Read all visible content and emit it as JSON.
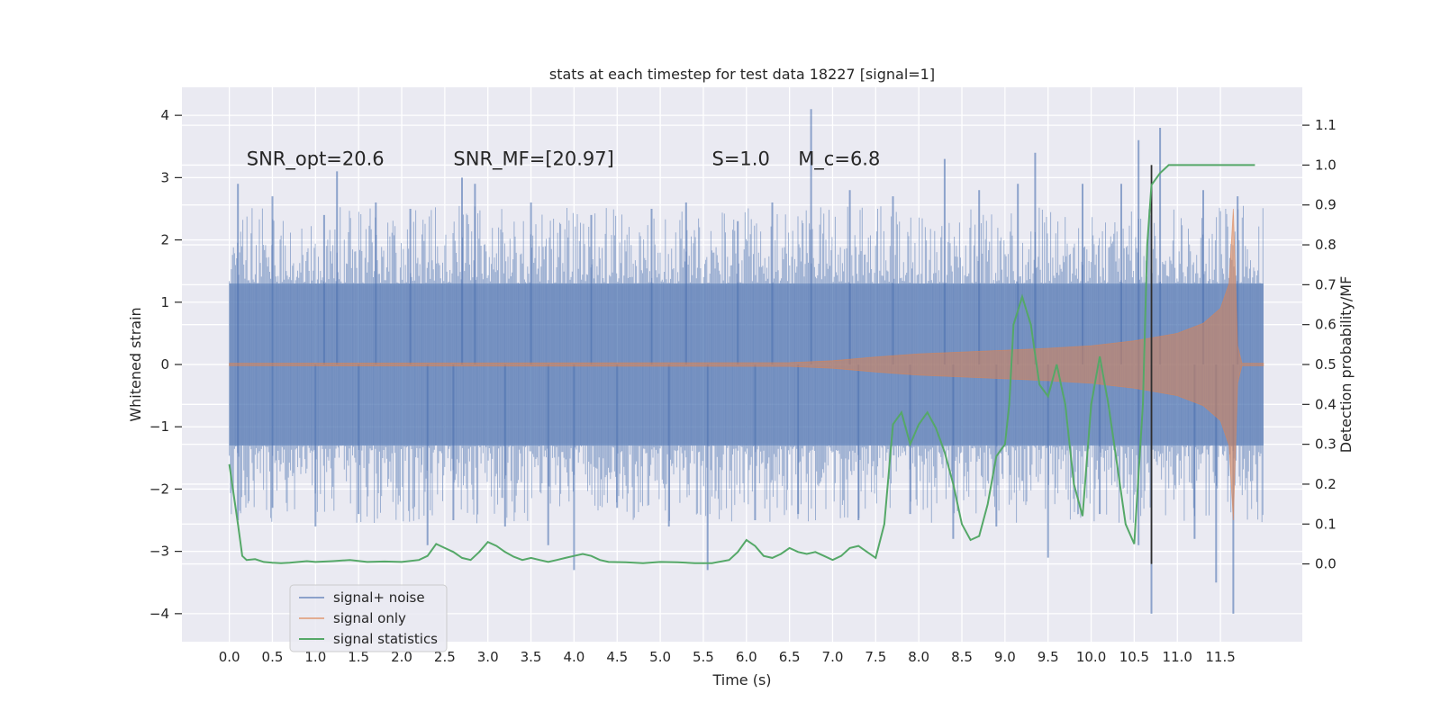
{
  "chart_data": {
    "type": "line",
    "title": "stats at each timestep for test data 18227 [signal=1]",
    "xlabel": "Time (s)",
    "ylabel": "Whitened strain",
    "ylabel_right": "Detection probability/MF",
    "xlim": [
      -0.55,
      12.45
    ],
    "ylim": [
      -4.45,
      4.45
    ],
    "ylim_right": [
      -0.195,
      1.195
    ],
    "x_ticks": [
      0.0,
      0.5,
      1.0,
      1.5,
      2.0,
      2.5,
      3.0,
      3.5,
      4.0,
      4.5,
      5.0,
      5.5,
      6.0,
      6.5,
      7.0,
      7.5,
      8.0,
      8.5,
      9.0,
      9.5,
      10.0,
      10.5,
      11.0,
      11.5
    ],
    "x_tick_labels": [
      "0.0",
      "0.5",
      "1.0",
      "1.5",
      "2.0",
      "2.5",
      "3.0",
      "3.5",
      "4.0",
      "4.5",
      "5.0",
      "5.5",
      "6.0",
      "6.5",
      "7.0",
      "7.5",
      "8.0",
      "8.5",
      "9.0",
      "9.5",
      "10.0",
      "10.5",
      "11.0",
      "11.5"
    ],
    "y_ticks": [
      -4,
      -3,
      -2,
      -1,
      0,
      1,
      2,
      3,
      4
    ],
    "y_tick_labels": [
      "−4",
      "−3",
      "−2",
      "−1",
      "0",
      "1",
      "2",
      "3",
      "4"
    ],
    "y_right_ticks": [
      0.0,
      0.1,
      0.2,
      0.3,
      0.4,
      0.5,
      0.6,
      0.7,
      0.8,
      0.9,
      1.0,
      1.1
    ],
    "y_right_tick_labels": [
      "0.0",
      "0.1",
      "0.2",
      "0.3",
      "0.4",
      "0.5",
      "0.6",
      "0.7",
      "0.8",
      "0.9",
      "1.0",
      "1.1"
    ],
    "grid": true,
    "legend_position": "lower-left",
    "annotations": [
      {
        "text": "SNR_opt=20.6",
        "x": 0.2,
        "y": 3.3
      },
      {
        "text": "SNR_MF=[20.97]",
        "x": 2.6,
        "y": 3.3
      },
      {
        "text": "S=1.0",
        "x": 5.6,
        "y": 3.3
      },
      {
        "text": "M_c=6.8",
        "x": 6.6,
        "y": 3.3
      }
    ],
    "series": [
      {
        "name": "signal+ noise",
        "color": "#4c72b0",
        "axis": "left",
        "kind": "noise-band",
        "x_range": [
          0.0,
          12.0
        ],
        "band": [
          -1.3,
          1.3
        ],
        "spikes_up": [
          [
            0.1,
            2.9
          ],
          [
            0.5,
            2.7
          ],
          [
            1.1,
            2.4
          ],
          [
            1.25,
            3.1
          ],
          [
            1.7,
            2.6
          ],
          [
            2.1,
            2.5
          ],
          [
            2.7,
            3.0
          ],
          [
            2.85,
            2.9
          ],
          [
            3.5,
            2.6
          ],
          [
            4.2,
            2.4
          ],
          [
            4.9,
            2.5
          ],
          [
            5.3,
            2.6
          ],
          [
            5.9,
            2.3
          ],
          [
            6.3,
            2.6
          ],
          [
            6.75,
            4.1
          ],
          [
            7.2,
            2.8
          ],
          [
            7.7,
            2.7
          ],
          [
            8.3,
            3.3
          ],
          [
            8.7,
            2.8
          ],
          [
            9.15,
            2.9
          ],
          [
            9.35,
            3.4
          ],
          [
            9.9,
            2.9
          ],
          [
            10.35,
            2.9
          ],
          [
            10.55,
            3.6
          ],
          [
            10.8,
            3.8
          ],
          [
            11.3,
            2.8
          ],
          [
            11.7,
            2.7
          ]
        ],
        "spikes_down": [
          [
            0.1,
            -2.5
          ],
          [
            0.5,
            -2.3
          ],
          [
            1.0,
            -2.6
          ],
          [
            1.5,
            -2.4
          ],
          [
            2.3,
            -2.9
          ],
          [
            2.6,
            -2.5
          ],
          [
            3.2,
            -2.6
          ],
          [
            3.7,
            -2.9
          ],
          [
            4.0,
            -3.3
          ],
          [
            4.5,
            -2.3
          ],
          [
            5.1,
            -2.6
          ],
          [
            5.55,
            -3.3
          ],
          [
            6.1,
            -2.5
          ],
          [
            6.6,
            -2.4
          ],
          [
            7.3,
            -2.5
          ],
          [
            7.9,
            -2.4
          ],
          [
            8.4,
            -2.8
          ],
          [
            8.9,
            -2.6
          ],
          [
            9.5,
            -3.1
          ],
          [
            10.1,
            -2.4
          ],
          [
            10.55,
            -2.9
          ],
          [
            10.7,
            -4.0
          ],
          [
            11.2,
            -2.8
          ],
          [
            11.45,
            -3.5
          ],
          [
            11.65,
            -4.0
          ]
        ]
      },
      {
        "name": "signal only",
        "color": "#dd8452",
        "axis": "left",
        "kind": "chirp-envelope",
        "envelope": [
          [
            0.0,
            0.02
          ],
          [
            6.5,
            0.03
          ],
          [
            7.0,
            0.06
          ],
          [
            7.5,
            0.12
          ],
          [
            8.0,
            0.17
          ],
          [
            8.5,
            0.2
          ],
          [
            9.0,
            0.23
          ],
          [
            9.5,
            0.26
          ],
          [
            10.0,
            0.3
          ],
          [
            10.5,
            0.38
          ],
          [
            11.0,
            0.5
          ],
          [
            11.3,
            0.66
          ],
          [
            11.5,
            0.9
          ],
          [
            11.6,
            1.3
          ],
          [
            11.65,
            2.5
          ],
          [
            11.7,
            0.3
          ],
          [
            11.75,
            0.02
          ],
          [
            12.0,
            0.02
          ]
        ]
      },
      {
        "name": "signal statistics",
        "color": "#55a868",
        "axis": "right",
        "x": [
          0.0,
          0.1,
          0.15,
          0.2,
          0.3,
          0.4,
          0.5,
          0.6,
          0.7,
          0.8,
          0.9,
          1.0,
          1.2,
          1.4,
          1.6,
          1.8,
          2.0,
          2.2,
          2.3,
          2.4,
          2.5,
          2.6,
          2.7,
          2.8,
          2.9,
          3.0,
          3.1,
          3.2,
          3.3,
          3.4,
          3.5,
          3.6,
          3.7,
          3.8,
          3.9,
          4.0,
          4.1,
          4.2,
          4.3,
          4.4,
          4.6,
          4.8,
          5.0,
          5.2,
          5.4,
          5.6,
          5.8,
          5.9,
          6.0,
          6.1,
          6.2,
          6.3,
          6.4,
          6.5,
          6.6,
          6.7,
          6.8,
          6.9,
          7.0,
          7.1,
          7.2,
          7.3,
          7.4,
          7.5,
          7.6,
          7.7,
          7.8,
          7.9,
          8.0,
          8.1,
          8.2,
          8.3,
          8.4,
          8.5,
          8.6,
          8.7,
          8.8,
          8.9,
          9.0,
          9.05,
          9.1,
          9.2,
          9.3,
          9.4,
          9.5,
          9.6,
          9.7,
          9.8,
          9.9,
          10.0,
          10.1,
          10.2,
          10.3,
          10.4,
          10.5,
          10.6,
          10.65,
          10.7,
          10.8,
          10.9,
          11.0,
          11.1,
          11.2,
          11.5,
          11.8,
          11.9
        ],
        "values": [
          0.25,
          0.1,
          0.02,
          0.01,
          0.012,
          0.005,
          0.003,
          0.002,
          0.003,
          0.005,
          0.007,
          0.005,
          0.007,
          0.01,
          0.005,
          0.006,
          0.005,
          0.01,
          0.02,
          0.05,
          0.04,
          0.03,
          0.015,
          0.01,
          0.03,
          0.055,
          0.045,
          0.03,
          0.018,
          0.01,
          0.015,
          0.01,
          0.005,
          0.01,
          0.015,
          0.02,
          0.025,
          0.02,
          0.01,
          0.005,
          0.004,
          0.002,
          0.005,
          0.004,
          0.002,
          0.002,
          0.01,
          0.03,
          0.06,
          0.045,
          0.02,
          0.015,
          0.025,
          0.04,
          0.03,
          0.025,
          0.03,
          0.02,
          0.01,
          0.02,
          0.04,
          0.045,
          0.03,
          0.015,
          0.1,
          0.35,
          0.38,
          0.3,
          0.35,
          0.38,
          0.34,
          0.28,
          0.2,
          0.1,
          0.06,
          0.07,
          0.15,
          0.27,
          0.3,
          0.4,
          0.6,
          0.67,
          0.6,
          0.45,
          0.42,
          0.5,
          0.4,
          0.2,
          0.12,
          0.4,
          0.52,
          0.4,
          0.25,
          0.1,
          0.05,
          0.4,
          0.8,
          0.95,
          0.98,
          1.0,
          1.0,
          1.0,
          1.0,
          1.0,
          1.0,
          1.0
        ]
      }
    ],
    "vertical_line": {
      "x": 10.7,
      "y_range_right": [
        0.0,
        1.0
      ],
      "color": "#2f2f2f"
    }
  }
}
